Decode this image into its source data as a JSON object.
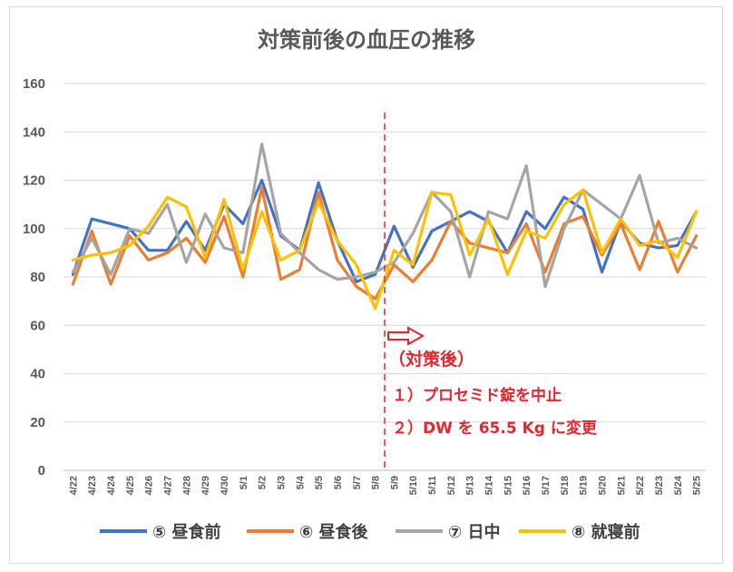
{
  "chart_data": {
    "type": "line",
    "title": "対策前後の血圧の推移",
    "ylim": [
      0,
      160
    ],
    "y_ticks": [
      0,
      20,
      40,
      60,
      80,
      100,
      120,
      140,
      160
    ],
    "grid": true,
    "legend_position": "bottom",
    "categories": [
      "4/22",
      "4/23",
      "4/24",
      "4/25",
      "4/26",
      "4/27",
      "4/28",
      "4/29",
      "4/30",
      "5/1",
      "5/2",
      "5/3",
      "5/4",
      "5/5",
      "5/6",
      "5/7",
      "5/8",
      "5/9",
      "5/10",
      "5/11",
      "5/12",
      "5/13",
      "5/14",
      "5/15",
      "5/16",
      "5/17",
      "5/18",
      "5/19",
      "5/20",
      "5/21",
      "5/22",
      "5/23",
      "5/24",
      "5/25"
    ],
    "series": [
      {
        "name": "⑤ 昼食前",
        "color": "#4472c4",
        "values": [
          81,
          104,
          102,
          100,
          91,
          91,
          103,
          91,
          110,
          102,
          120,
          97,
          91,
          119,
          95,
          78,
          81,
          101,
          84,
          99,
          103,
          107,
          103,
          90,
          107,
          100,
          113,
          108,
          82,
          103,
          94,
          92,
          93,
          107
        ]
      },
      {
        "name": "⑥ 昼食後",
        "color": "#ed7d31",
        "values": [
          77,
          99,
          77,
          97,
          87,
          90,
          96,
          86,
          105,
          80,
          117,
          79,
          83,
          115,
          87,
          76,
          71,
          85,
          78,
          87,
          103,
          94,
          92,
          90,
          102,
          82,
          102,
          105,
          89,
          102,
          83,
          103,
          82,
          97
        ]
      },
      {
        "name": "⑦ 日中",
        "color": "#a5a5a5",
        "values": [
          82,
          96,
          81,
          100,
          98,
          110,
          86,
          106,
          92,
          90,
          135,
          98,
          90,
          83,
          79,
          80,
          82,
          86,
          98,
          115,
          107,
          80,
          107,
          104,
          126,
          76,
          100,
          116,
          110,
          104,
          122,
          94,
          96,
          92
        ]
      },
      {
        "name": "⑧ 就寝前",
        "color": "#ffc000",
        "values": [
          87,
          89,
          90,
          93,
          101,
          113,
          109,
          88,
          112,
          83,
          107,
          87,
          91,
          111,
          95,
          85,
          67,
          91,
          85,
          115,
          114,
          89,
          104,
          81,
          99,
          96,
          110,
          116,
          90,
          104,
          93,
          95,
          88,
          107
        ]
      }
    ],
    "annotations": {
      "divider_after": "5/8",
      "heading": "（対策後）",
      "line1": "１）プロセミド錠を中止",
      "line2": "２）DW を 65.5 Kg に変更"
    }
  }
}
